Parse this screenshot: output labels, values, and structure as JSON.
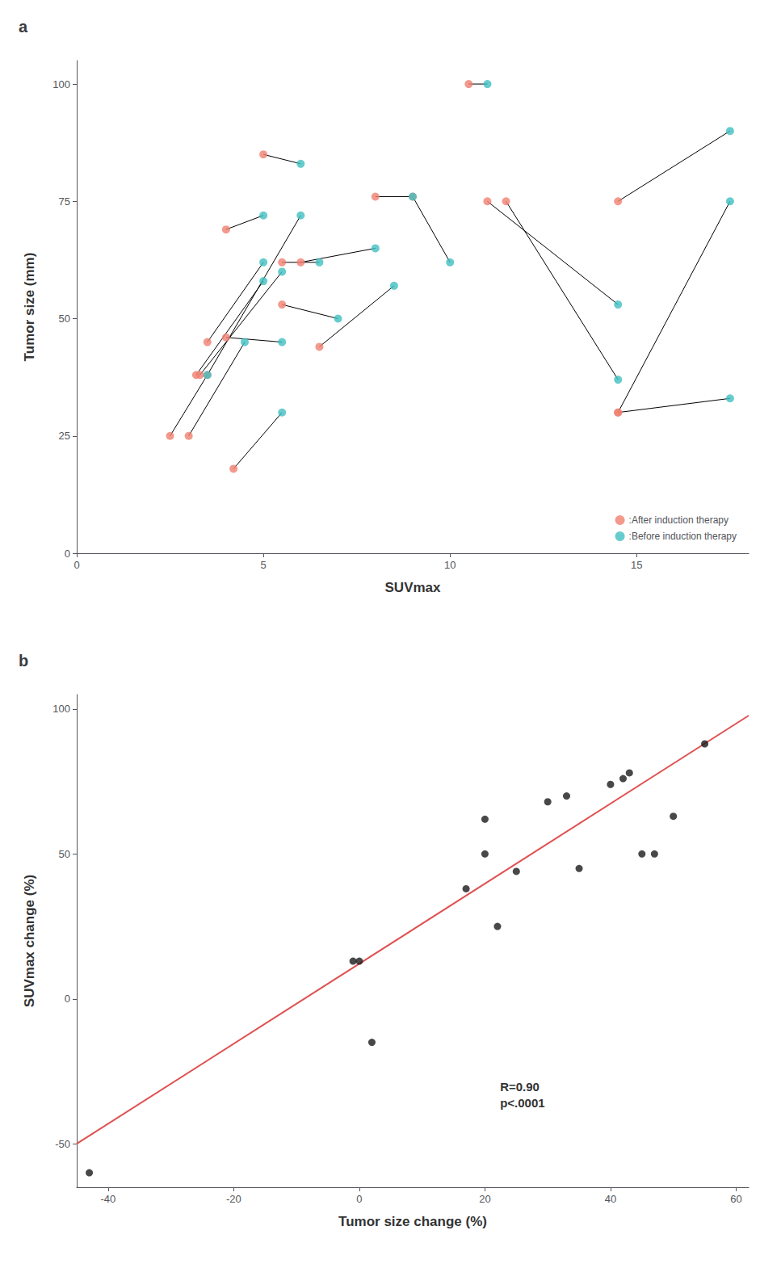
{
  "chart_data": [
    {
      "type": "scatter",
      "title": "a",
      "xlabel": "SUVmax",
      "ylabel": "Tumor size (mm)",
      "xlim": [
        0,
        18
      ],
      "ylim": [
        0,
        105
      ],
      "xticks": [
        0,
        5,
        10,
        15
      ],
      "yticks": [
        0,
        25,
        50,
        75,
        100
      ],
      "grid": false,
      "legend": "lower right",
      "series": [
        {
          "type": "line",
          "color": "#000000",
          "x": [
            2.5,
            3.5,
            null,
            3.0,
            4.5,
            null,
            3.2,
            5.0,
            null,
            3.3,
            5.5,
            null,
            3.5,
            5.0,
            null,
            3.5,
            6.0,
            null,
            4.0,
            5.5,
            null,
            4.0,
            5.0,
            null,
            4.2,
            5.5,
            null,
            5.0,
            6.0,
            null,
            5.5,
            6.5,
            null,
            5.5,
            7.0,
            null,
            6.0,
            8.0,
            null,
            6.5,
            8.5,
            null,
            8.0,
            9.0,
            null,
            9.0,
            10.0,
            null,
            10.5,
            11.0,
            null,
            11.0,
            14.5,
            null,
            11.5,
            14.5,
            null,
            14.5,
            17.5,
            null,
            14.5,
            17.5,
            null,
            14.5,
            17.5
          ],
          "values": [
            25,
            38,
            null,
            25,
            45,
            null,
            38,
            58,
            null,
            38,
            60,
            null,
            45,
            62,
            null,
            38,
            72,
            null,
            46,
            45,
            null,
            69,
            72,
            null,
            18,
            30,
            null,
            85,
            83,
            null,
            62,
            62,
            null,
            53,
            50,
            null,
            62,
            65,
            null,
            44,
            57,
            null,
            76,
            76,
            null,
            76,
            62,
            null,
            100,
            100,
            null,
            75,
            53,
            null,
            75,
            37,
            null,
            75,
            90,
            null,
            30,
            75,
            null,
            30,
            33
          ]
        },
        {
          "type": "scatter",
          "name": ":After induction therapy",
          "color": "#F08070",
          "x": [
            2.5,
            3.0,
            3.2,
            3.3,
            3.5,
            3.5,
            4.0,
            4.0,
            4.2,
            5.0,
            5.5,
            5.5,
            6.0,
            6.5,
            8.0,
            9.0,
            10.5,
            11.0,
            11.5,
            14.5,
            14.5,
            14.5
          ],
          "values": [
            25,
            25,
            38,
            38,
            45,
            38,
            46,
            69,
            18,
            85,
            62,
            53,
            62,
            44,
            76,
            76,
            100,
            75,
            75,
            75,
            30,
            30
          ]
        },
        {
          "type": "scatter",
          "name": ":Before induction therapy",
          "color": "#40BFC0",
          "x": [
            3.5,
            4.5,
            5.0,
            5.5,
            5.0,
            6.0,
            5.5,
            5.0,
            5.5,
            6.0,
            6.5,
            7.0,
            8.0,
            8.5,
            9.0,
            10.0,
            11.0,
            14.5,
            14.5,
            17.5,
            17.5,
            17.5
          ],
          "values": [
            38,
            45,
            58,
            60,
            62,
            72,
            45,
            72,
            30,
            83,
            62,
            50,
            65,
            57,
            76,
            62,
            100,
            53,
            37,
            90,
            75,
            33
          ]
        }
      ]
    },
    {
      "type": "scatter",
      "title": "b",
      "xlabel": "Tumor size change (%)",
      "ylabel": "SUVmax change (%)",
      "xlim": [
        -45,
        62
      ],
      "ylim": [
        -65,
        105
      ],
      "xticks": [
        -40,
        -20,
        0,
        20,
        40,
        60
      ],
      "yticks": [
        -50,
        0,
        50,
        100
      ],
      "grid": false,
      "annotation": "R=0.90\np<.0001",
      "series": [
        {
          "type": "scatter",
          "color": "#1a1a1a",
          "x": [
            -43,
            -1,
            0,
            2,
            17,
            20,
            20,
            22,
            25,
            30,
            33,
            35,
            40,
            42,
            43,
            45,
            47,
            50,
            55
          ],
          "values": [
            -60,
            13,
            13,
            -15,
            38,
            50,
            62,
            25,
            44,
            68,
            70,
            45,
            74,
            76,
            78,
            50,
            50,
            63,
            88
          ]
        },
        {
          "type": "line",
          "color": "#E05050",
          "x": [
            -45,
            62
          ],
          "values": [
            -50,
            97.76190476190476
          ]
        }
      ]
    }
  ]
}
